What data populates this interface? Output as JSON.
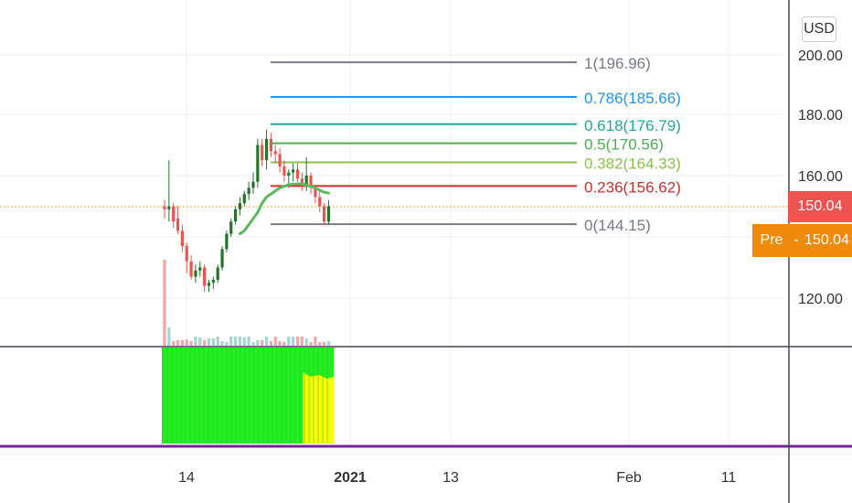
{
  "currency_button": "USD",
  "last_price_label": "150.04",
  "pre_market": {
    "label": "Pre",
    "separator": "-",
    "value": "150.04"
  },
  "colors": {
    "up": "#26732b",
    "down": "#ef5350",
    "ma": "#5cb85c",
    "price_line": "#f5a623",
    "volume_up": "#a6d6d0",
    "volume_down": "#f0a8a8",
    "osc_green": "#22ee22",
    "osc_yellow": "#ffff00",
    "purple_line": "#7b1fa2"
  },
  "chart_data": {
    "type": "candlestick",
    "x_axis_labels": [
      "14",
      "2021",
      "13",
      "Feb",
      "11"
    ],
    "y_axis_labels": [
      "200.00",
      "180.00",
      "160.00",
      "120.00"
    ],
    "ylim": [
      108,
      205
    ],
    "last_price": 150.04,
    "fib_levels": [
      {
        "label": "1(196.96)",
        "value": 196.96,
        "color": "#787b86"
      },
      {
        "label": "0.786(185.66)",
        "value": 185.66,
        "color": "#2196f3"
      },
      {
        "label": "0.618(176.79)",
        "value": 176.79,
        "color": "#26a69a"
      },
      {
        "label": "0.5(170.56)",
        "value": 170.56,
        "color": "#4caf50"
      },
      {
        "label": "0.382(164.33)",
        "value": 164.33,
        "color": "#8bc34a"
      },
      {
        "label": "0.236(156.62)",
        "value": 156.62,
        "color": "#d32f2f"
      },
      {
        "label": "0(144.15)",
        "value": 144.15,
        "color": "#787b86"
      }
    ],
    "candles": [
      [
        150,
        152,
        146,
        149
      ],
      [
        149,
        165,
        145,
        150
      ],
      [
        150,
        151,
        143,
        145
      ],
      [
        146,
        150,
        141,
        142
      ],
      [
        142,
        144,
        135,
        137
      ],
      [
        137,
        138,
        128,
        132
      ],
      [
        132,
        134,
        126,
        127
      ],
      [
        127,
        131,
        125,
        129
      ],
      [
        129,
        132,
        127,
        130
      ],
      [
        130,
        131,
        122,
        124
      ],
      [
        124,
        126,
        122,
        125
      ],
      [
        125,
        127,
        123,
        126
      ],
      [
        126,
        131,
        125,
        130
      ],
      [
        130,
        137,
        129,
        136
      ],
      [
        136,
        142,
        135,
        141
      ],
      [
        141,
        146,
        140,
        145
      ],
      [
        145,
        150,
        144,
        149
      ],
      [
        149,
        153,
        147,
        151
      ],
      [
        151,
        155,
        150,
        154
      ],
      [
        154,
        158,
        152,
        156
      ],
      [
        156,
        161,
        154,
        158
      ],
      [
        158,
        172,
        156,
        170
      ],
      [
        170,
        172,
        163,
        165
      ],
      [
        165,
        175,
        162,
        172
      ],
      [
        172,
        174,
        166,
        168
      ],
      [
        168,
        170,
        164,
        167
      ],
      [
        167,
        169,
        161,
        163
      ],
      [
        163,
        165,
        158,
        160
      ],
      [
        160,
        162,
        156,
        161
      ],
      [
        161,
        164,
        158,
        162
      ],
      [
        162,
        164,
        158,
        159
      ],
      [
        159,
        161,
        155,
        157
      ],
      [
        157,
        166,
        155,
        160
      ],
      [
        160,
        161,
        154,
        156
      ],
      [
        156,
        157,
        151,
        153
      ],
      [
        153,
        155,
        148,
        150
      ],
      [
        150,
        151,
        144,
        145
      ],
      [
        145,
        152,
        144,
        150
      ]
    ],
    "moving_average": [
      141,
      142,
      144,
      146,
      148,
      151,
      153,
      154,
      155,
      156,
      156.5,
      157,
      157.2,
      157.3,
      157.2,
      156.9,
      156.5,
      156,
      155.2,
      154.6,
      154.3
    ]
  }
}
